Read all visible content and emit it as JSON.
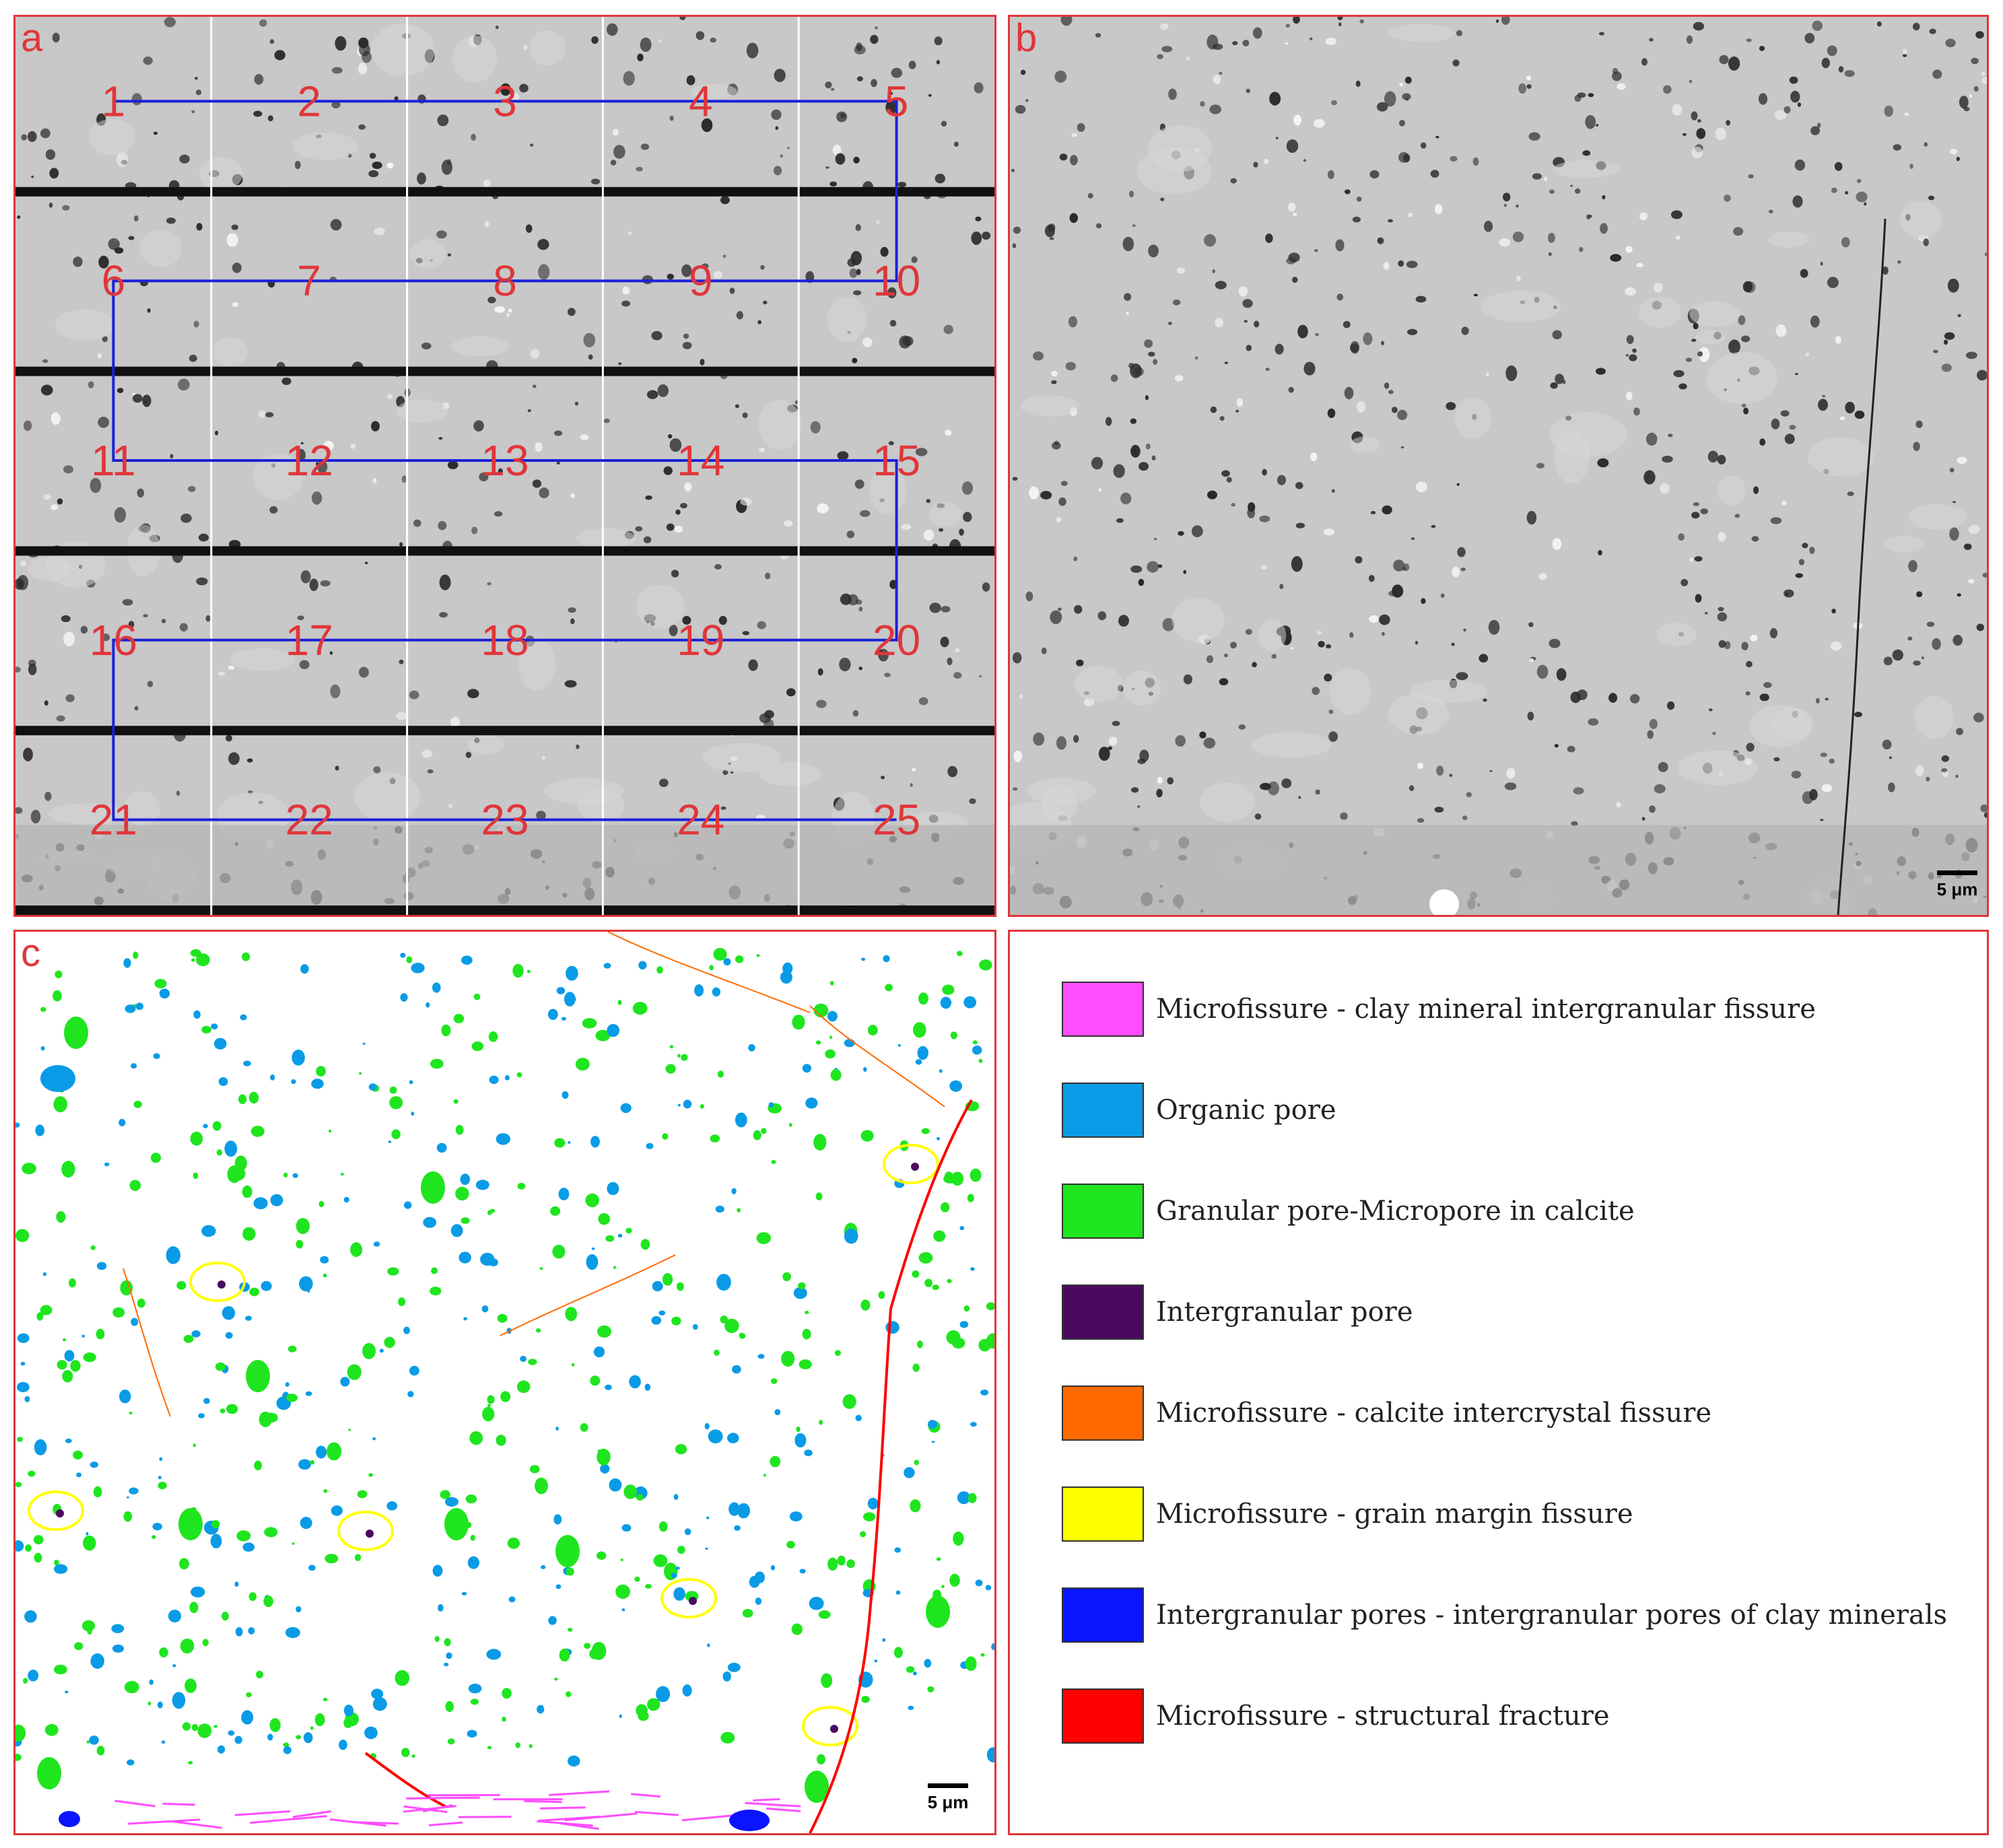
{
  "panels": {
    "a": {
      "letter": "a",
      "tile_numbers": [
        "1",
        "2",
        "3",
        "4",
        "5",
        "10",
        "9",
        "8",
        "7",
        "6",
        "11",
        "12",
        "13",
        "14",
        "15",
        "20",
        "19",
        "18",
        "17",
        "16",
        "21",
        "22",
        "23",
        "24",
        "25"
      ]
    },
    "b": {
      "letter": "b",
      "scale_label": "5 μm"
    },
    "c": {
      "letter": "c",
      "scale_label": "5 μm"
    }
  },
  "legend": [
    {
      "label": "Microfissure - clay mineral intergranular fissure",
      "color": "#ff4dff"
    },
    {
      "label": "Organic pore",
      "color": "#0a9be6"
    },
    {
      "label": "Granular pore-Micropore in calcite",
      "color": "#1fe51f"
    },
    {
      "label": "Intergranular pore",
      "color": "#4b0a60"
    },
    {
      "label": "Microfissure - calcite intercrystal fissure",
      "color": "#ff6a00"
    },
    {
      "label": "Microfissure - grain margin fissure",
      "color": "#ffff00"
    },
    {
      "label": "Intergranular pores - intergranular pores of clay minerals",
      "color": "#0a14ff"
    },
    {
      "label": "Microfissure - structural fracture",
      "color": "#ff0000"
    }
  ],
  "colors": {
    "frame": "#e0363a",
    "path": "#1a22d6",
    "tile_number": "#e0363a"
  }
}
